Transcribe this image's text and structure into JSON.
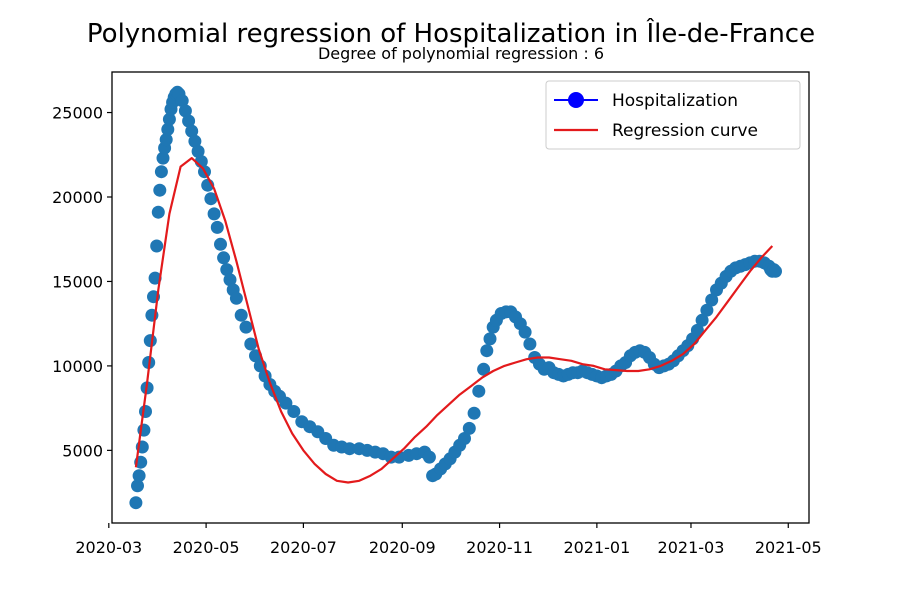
{
  "chart_data": {
    "type": "scatter",
    "title": "Polynomial regression of Hospitalization in Île-de-France",
    "subtitle": "Degree of polynomial regression : 6",
    "xlabel": "",
    "ylabel": "",
    "x_type": "date",
    "xlim": [
      "2020-03-03",
      "2021-05-14"
    ],
    "ylim": [
      700,
      27400
    ],
    "x_ticks": [
      "2020-03",
      "2020-05",
      "2020-07",
      "2020-09",
      "2020-11",
      "2021-01",
      "2021-03",
      "2021-05"
    ],
    "y_ticks": [
      5000,
      10000,
      15000,
      20000,
      25000
    ],
    "grid": false,
    "legend_position": "top-right",
    "colors": {
      "scatter": "#1f77b4",
      "legend_marker": "#0000ff",
      "regression": "#e31a1c"
    },
    "legend": [
      {
        "label": "Hospitalization",
        "kind": "marker"
      },
      {
        "label": "Regression curve",
        "kind": "line"
      }
    ],
    "series": [
      {
        "name": "Hospitalization",
        "kind": "scatter",
        "x": [
          "2020-03-18",
          "2020-03-19",
          "2020-03-20",
          "2020-03-21",
          "2020-03-22",
          "2020-03-23",
          "2020-03-24",
          "2020-03-25",
          "2020-03-26",
          "2020-03-27",
          "2020-03-28",
          "2020-03-29",
          "2020-03-30",
          "2020-03-31",
          "2020-04-01",
          "2020-04-02",
          "2020-04-03",
          "2020-04-04",
          "2020-04-05",
          "2020-04-06",
          "2020-04-07",
          "2020-04-08",
          "2020-04-09",
          "2020-04-10",
          "2020-04-11",
          "2020-04-12",
          "2020-04-13",
          "2020-04-14",
          "2020-04-16",
          "2020-04-18",
          "2020-04-20",
          "2020-04-22",
          "2020-04-24",
          "2020-04-26",
          "2020-04-28",
          "2020-04-30",
          "2020-05-02",
          "2020-05-04",
          "2020-05-06",
          "2020-05-08",
          "2020-05-10",
          "2020-05-12",
          "2020-05-14",
          "2020-05-16",
          "2020-05-18",
          "2020-05-20",
          "2020-05-23",
          "2020-05-26",
          "2020-05-29",
          "2020-06-01",
          "2020-06-04",
          "2020-06-07",
          "2020-06-10",
          "2020-06-13",
          "2020-06-16",
          "2020-06-20",
          "2020-06-25",
          "2020-06-30",
          "2020-07-05",
          "2020-07-10",
          "2020-07-15",
          "2020-07-20",
          "2020-07-25",
          "2020-07-30",
          "2020-08-05",
          "2020-08-10",
          "2020-08-15",
          "2020-08-20",
          "2020-08-25",
          "2020-08-30",
          "2020-09-05",
          "2020-09-10",
          "2020-09-15",
          "2020-09-18",
          "2020-09-20",
          "2020-09-22",
          "2020-09-25",
          "2020-09-28",
          "2020-10-01",
          "2020-10-04",
          "2020-10-07",
          "2020-10-10",
          "2020-10-13",
          "2020-10-16",
          "2020-10-19",
          "2020-10-22",
          "2020-10-24",
          "2020-10-26",
          "2020-10-28",
          "2020-10-30",
          "2020-11-02",
          "2020-11-05",
          "2020-11-08",
          "2020-11-11",
          "2020-11-14",
          "2020-11-17",
          "2020-11-20",
          "2020-11-23",
          "2020-11-26",
          "2020-11-29",
          "2020-12-02",
          "2020-12-05",
          "2020-12-08",
          "2020-12-11",
          "2020-12-14",
          "2020-12-17",
          "2020-12-20",
          "2020-12-23",
          "2020-12-26",
          "2020-12-29",
          "2021-01-01",
          "2021-01-04",
          "2021-01-07",
          "2021-01-10",
          "2021-01-13",
          "2021-01-16",
          "2021-01-19",
          "2021-01-22",
          "2021-01-25",
          "2021-01-28",
          "2021-01-31",
          "2021-02-03",
          "2021-02-06",
          "2021-02-09",
          "2021-02-12",
          "2021-02-15",
          "2021-02-18",
          "2021-02-21",
          "2021-02-24",
          "2021-02-27",
          "2021-03-02",
          "2021-03-05",
          "2021-03-08",
          "2021-03-11",
          "2021-03-14",
          "2021-03-17",
          "2021-03-20",
          "2021-03-23",
          "2021-03-26",
          "2021-03-29",
          "2021-04-01",
          "2021-04-04",
          "2021-04-07",
          "2021-04-10",
          "2021-04-13",
          "2021-04-16",
          "2021-04-19",
          "2021-04-20",
          "2021-04-21",
          "2021-04-22",
          "2021-04-23"
        ],
        "y": [
          1900,
          2900,
          3500,
          4300,
          5200,
          6200,
          7300,
          8700,
          10200,
          11500,
          13000,
          14100,
          15200,
          17100,
          19100,
          20400,
          21500,
          22300,
          22900,
          23400,
          24000,
          24600,
          25200,
          25600,
          25900,
          26100,
          26200,
          26100,
          25700,
          25100,
          24500,
          23900,
          23300,
          22700,
          22100,
          21500,
          20700,
          19900,
          19000,
          18200,
          17200,
          16400,
          15700,
          15100,
          14500,
          14000,
          13000,
          12300,
          11300,
          10600,
          10000,
          9400,
          8900,
          8500,
          8200,
          7800,
          7300,
          6700,
          6400,
          6100,
          5700,
          5300,
          5200,
          5100,
          5100,
          5000,
          4900,
          4800,
          4600,
          4600,
          4700,
          4800,
          4900,
          4600,
          3500,
          3600,
          3900,
          4200,
          4500,
          4900,
          5300,
          5700,
          6300,
          7200,
          8500,
          9800,
          10900,
          11600,
          12300,
          12700,
          13100,
          13200,
          13200,
          12900,
          12500,
          12000,
          11300,
          10500,
          10100,
          9800,
          9900,
          9600,
          9500,
          9400,
          9500,
          9600,
          9600,
          9700,
          9600,
          9500,
          9400,
          9300,
          9400,
          9500,
          9700,
          10000,
          10200,
          10600,
          10800,
          10900,
          10800,
          10500,
          10100,
          9900,
          10000,
          10100,
          10300,
          10600,
          10900,
          11200,
          11600,
          12100,
          12700,
          13300,
          13900,
          14500,
          14900,
          15300,
          15600,
          15800,
          15900,
          16000,
          16100,
          16200,
          16200,
          16100,
          15900,
          15700,
          15600,
          15700,
          15600
        ]
      },
      {
        "name": "Regression curve",
        "kind": "line",
        "x": [
          "2020-03-18",
          "2020-03-25",
          "2020-04-01",
          "2020-04-08",
          "2020-04-15",
          "2020-04-22",
          "2020-04-29",
          "2020-05-06",
          "2020-05-13",
          "2020-05-20",
          "2020-05-27",
          "2020-06-03",
          "2020-06-10",
          "2020-06-17",
          "2020-06-24",
          "2020-07-01",
          "2020-07-08",
          "2020-07-15",
          "2020-07-22",
          "2020-07-29",
          "2020-08-05",
          "2020-08-12",
          "2020-08-19",
          "2020-08-26",
          "2020-09-02",
          "2020-09-09",
          "2020-09-16",
          "2020-09-23",
          "2020-09-30",
          "2020-10-07",
          "2020-10-14",
          "2020-10-21",
          "2020-10-28",
          "2020-11-04",
          "2020-11-11",
          "2020-11-18",
          "2020-11-25",
          "2020-12-02",
          "2020-12-09",
          "2020-12-16",
          "2020-12-23",
          "2020-12-30",
          "2021-01-06",
          "2021-01-13",
          "2021-01-20",
          "2021-01-27",
          "2021-02-03",
          "2021-02-10",
          "2021-02-17",
          "2021-02-24",
          "2021-03-03",
          "2021-03-10",
          "2021-03-17",
          "2021-03-24",
          "2021-03-31",
          "2021-04-07",
          "2021-04-14",
          "2021-04-21"
        ],
        "y": [
          4000,
          9000,
          14500,
          19000,
          21800,
          22300,
          21700,
          20500,
          18600,
          16200,
          13600,
          11000,
          9000,
          7300,
          6000,
          5000,
          4200,
          3600,
          3200,
          3100,
          3200,
          3500,
          3900,
          4500,
          5100,
          5800,
          6400,
          7100,
          7700,
          8300,
          8800,
          9300,
          9700,
          10000,
          10200,
          10400,
          10500,
          10500,
          10400,
          10300,
          10100,
          10000,
          9800,
          9750,
          9700,
          9700,
          9800,
          10000,
          10300,
          10700,
          11300,
          12100,
          12900,
          13800,
          14700,
          15600,
          16400,
          17100
        ]
      }
    ]
  }
}
